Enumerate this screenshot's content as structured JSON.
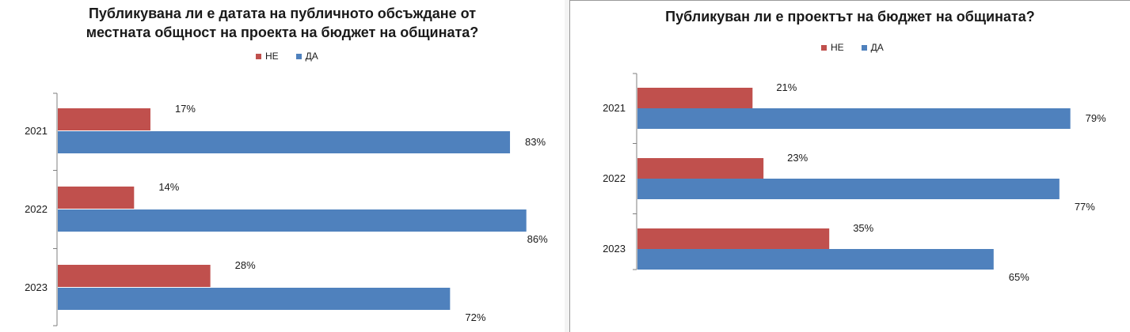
{
  "colors": {
    "no": "#c0504d",
    "yes": "#4f81bd",
    "axis": "#7f7f7f"
  },
  "chart_data": [
    {
      "type": "bar",
      "orientation": "horizontal",
      "title_lines": [
        "Публикувана ли е датата на публичното обсъждане от",
        "местната общност на проекта на бюджет на общината?"
      ],
      "categories": [
        "2021",
        "2022",
        "2023"
      ],
      "series": [
        {
          "name": "НЕ",
          "values": [
            17,
            14,
            28
          ],
          "labels": [
            "17%",
            "14%",
            "28%"
          ]
        },
        {
          "name": "ДА",
          "values": [
            83,
            86,
            72
          ],
          "labels": [
            "83%",
            "86%",
            "72%"
          ]
        }
      ],
      "legend_position": "top",
      "grid": false
    },
    {
      "type": "bar",
      "orientation": "horizontal",
      "title_lines": [
        "Публикуван ли е проектът на бюджет на общината?"
      ],
      "categories": [
        "2021",
        "2022",
        "2023"
      ],
      "series": [
        {
          "name": "НЕ",
          "values": [
            21,
            23,
            35
          ],
          "labels": [
            "21%",
            "23%",
            "35%"
          ]
        },
        {
          "name": "ДА",
          "values": [
            79,
            77,
            65
          ],
          "labels": [
            "79%",
            "77%",
            "65%"
          ]
        }
      ],
      "legend_position": "top",
      "grid": false
    }
  ]
}
